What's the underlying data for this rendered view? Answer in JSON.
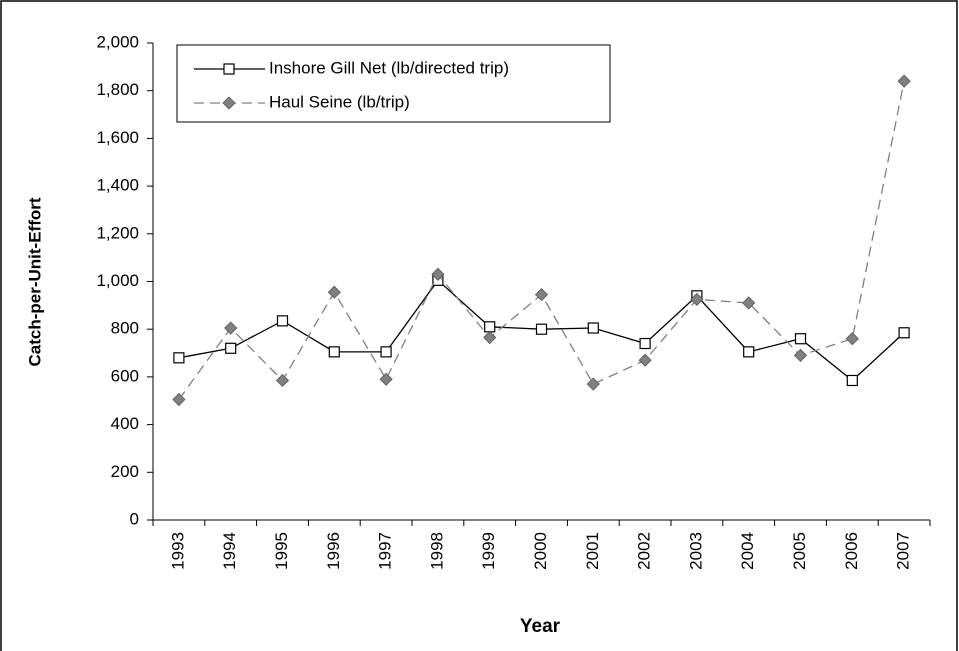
{
  "chart_data": {
    "type": "line",
    "x_label": "Year",
    "y_label": "Catch-per-Unit-Effort",
    "categories": [
      "1993",
      "1994",
      "1995",
      "1996",
      "1997",
      "1998",
      "1999",
      "2000",
      "2001",
      "2002",
      "2003",
      "2004",
      "2005",
      "2006",
      "2007"
    ],
    "series": [
      {
        "name": "Inshore Gill Net (lb/directed trip)",
        "color": "#000000",
        "dash": false,
        "marker": "square",
        "values": [
          680,
          720,
          835,
          705,
          705,
          1005,
          810,
          800,
          805,
          740,
          940,
          705,
          760,
          585,
          785
        ]
      },
      {
        "name": "Haul Seine (lb/trip)",
        "color": "#808080",
        "dash": true,
        "marker": "diamond",
        "values": [
          505,
          805,
          585,
          955,
          590,
          1030,
          765,
          945,
          570,
          670,
          925,
          910,
          690,
          760,
          1840
        ]
      }
    ],
    "ylim": [
      0,
      2000
    ],
    "yticks": [
      0,
      200,
      400,
      600,
      800,
      {
        "value": 1000,
        "label": "1,000"
      },
      {
        "value": 1200,
        "label": "1,200"
      },
      {
        "value": 1400,
        "label": "1,400"
      },
      {
        "value": 1600,
        "label": "1,600"
      },
      {
        "value": 1800,
        "label": "1,800"
      },
      {
        "value": 2000,
        "label": "2,000"
      }
    ],
    "grid": false,
    "legend": "top-left"
  }
}
